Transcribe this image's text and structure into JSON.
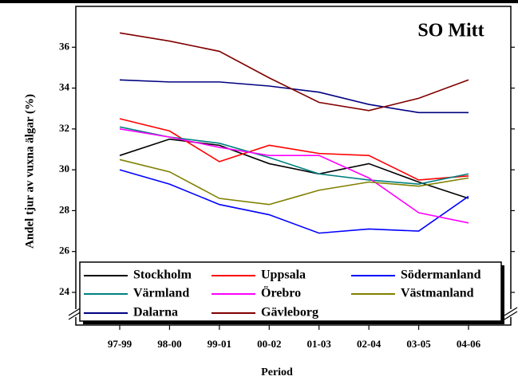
{
  "chart_data": {
    "type": "line",
    "title": "SO Mitt",
    "x_label": "Period",
    "y_label": "Andel tjur av vuxna älgar (%)",
    "categories": [
      "97-99",
      "98-00",
      "99-01",
      "00-02",
      "01-03",
      "02-04",
      "03-05",
      "04-06"
    ],
    "series": [
      {
        "name": "Stockholm",
        "color": "#000000",
        "values": [
          30.7,
          31.5,
          31.2,
          30.3,
          29.8,
          30.3,
          29.4,
          28.6
        ]
      },
      {
        "name": "Uppsala",
        "color": "#ff0000",
        "values": [
          32.5,
          31.9,
          30.4,
          31.2,
          30.8,
          30.7,
          29.5,
          29.7
        ]
      },
      {
        "name": "Södermanland",
        "color": "#0000ff",
        "values": [
          30.0,
          29.3,
          28.3,
          27.8,
          26.9,
          27.1,
          27.0,
          28.7
        ]
      },
      {
        "name": "Värmland",
        "color": "#008080",
        "values": [
          32.1,
          31.6,
          31.3,
          30.6,
          29.8,
          29.5,
          29.3,
          29.8
        ]
      },
      {
        "name": "Örebro",
        "color": "#ff00ff",
        "values": [
          32.0,
          31.6,
          31.1,
          30.7,
          30.7,
          29.6,
          27.9,
          27.4
        ]
      },
      {
        "name": "Västmanland",
        "color": "#808000",
        "values": [
          30.5,
          29.9,
          28.6,
          28.3,
          29.0,
          29.4,
          29.2,
          29.6
        ]
      },
      {
        "name": "Dalarna",
        "color": "#000080",
        "values": [
          34.4,
          34.3,
          34.3,
          34.1,
          33.8,
          33.2,
          32.8,
          32.8
        ]
      },
      {
        "name": "Gävleborg",
        "color": "#800000",
        "values": [
          36.7,
          36.3,
          35.8,
          34.5,
          33.3,
          32.9,
          33.5,
          34.4
        ]
      }
    ],
    "ylim": [
      22.4,
      38
    ],
    "yticks": [
      24,
      26,
      28,
      30,
      32,
      34,
      36
    ]
  }
}
